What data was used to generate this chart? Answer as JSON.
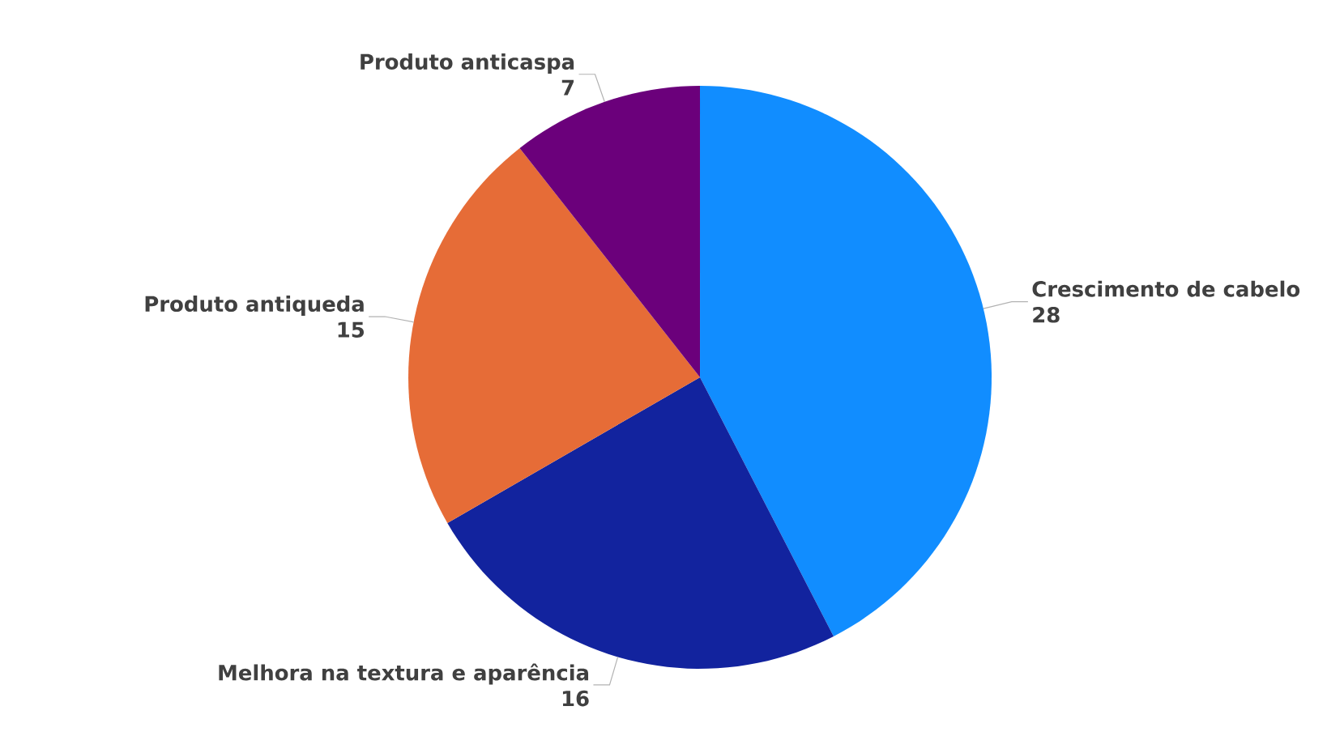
{
  "chart_data": {
    "type": "pie",
    "categories": [
      "Crescimento de cabelo",
      "Melhora na textura e aparência",
      "Produto antiqueda",
      "Produto anticaspa"
    ],
    "values": [
      28,
      16,
      15,
      7
    ],
    "colors": [
      "#118dff",
      "#12239e",
      "#e66c37",
      "#6b007b"
    ],
    "data_labels": true
  }
}
